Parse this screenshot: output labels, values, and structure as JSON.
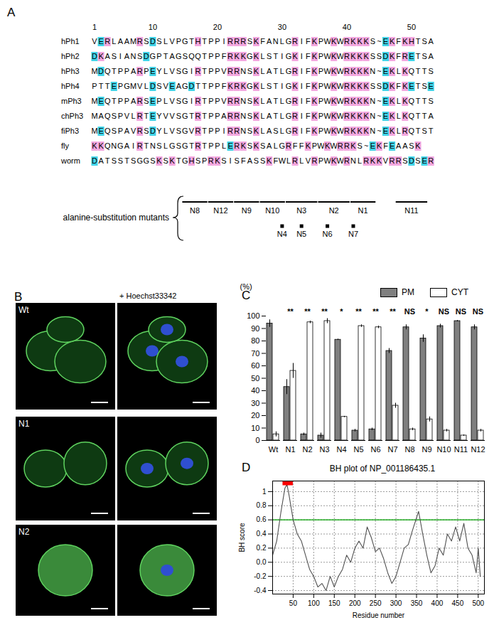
{
  "panel_a": {
    "letter": "A",
    "residue_numbers": [
      1,
      10,
      20,
      30,
      40,
      50
    ],
    "sequences": [
      {
        "name": "hPh1",
        "sequence": "VERLAAMRSDSLVPGTHTPPIRRRSKFANLGRIFKPWKWRKKKS~EKFKHTSA"
      },
      {
        "name": "hPh2",
        "sequence": "DKASIANSDGPTAGSQQTPPFRKKGKLSTIGKIFKPWKWRKKKSSDKFRETSA"
      },
      {
        "name": "hPh3",
        "sequence": "MDQTPPARPEYLVSGIRTPPVRRNSKLATLGRIFKPWKWRKKKN~EKLKQTTS"
      },
      {
        "name": "hPh4",
        "sequence": "PTTEPGMVLDSVEAGDTTPPFKRKGKLSTIGKIFKPWKWRKKKSSDKFKETSE"
      },
      {
        "name": "mPh3",
        "sequence": "MEQTPPARSEPLVSGIRTPPVRRNSKLATLGRIFKPWKWRKKKN~EKLKQTTS"
      },
      {
        "name": "chPh3",
        "sequence": "MAQSPVLRTEYVVSGTRTPPARRNSKLATLGRIFKPWKWRKKKN~EKLKQTTA"
      },
      {
        "name": "fiPh3",
        "sequence": "MEQSPAVRSDYLVSGVRTPPIRRNSKLASLGRIFKPWKWRKKKN~EKLRQTST"
      },
      {
        "name": "fly",
        "sequence": "KKQNGAIRTNSLGSGTRTPPLERKSKSALGRFFKPWKWRRKS~EKFEAASK"
      },
      {
        "name": "worm",
        "sequence": "DATSSTSGGSKSKTGHSPRKSISFASSKFWLRLVRPWKWRNLRKKVRRSDSER"
      }
    ],
    "mutant_group_label": "alanine-substitution mutants",
    "mutant_segments": [
      {
        "label": "N8",
        "start": 15,
        "end": 18
      },
      {
        "label": "N12",
        "start": 19,
        "end": 22
      },
      {
        "label": "N9",
        "start": 23,
        "end": 26
      },
      {
        "label": "N10",
        "start": 27,
        "end": 30
      },
      {
        "label": "N3",
        "start": 31,
        "end": 35
      },
      {
        "label": "N2",
        "start": 36,
        "end": 40
      },
      {
        "label": "N1",
        "start": 41,
        "end": 44
      },
      {
        "label": "N11",
        "start": 48,
        "end": 52
      }
    ],
    "mutant_points": [
      {
        "label": "N4",
        "position": 30
      },
      {
        "label": "N5",
        "position": 33
      },
      {
        "label": "N6",
        "position": 37
      },
      {
        "label": "N7",
        "position": 41
      }
    ]
  },
  "panel_b": {
    "letter": "B",
    "stain_label": "+ Hoechst33342",
    "images": [
      "Wt",
      "N1",
      "N2"
    ]
  },
  "chart_data": [
    {
      "letter": "C",
      "type": "bar",
      "categories": [
        "Wt",
        "N1",
        "N2",
        "N3",
        "N4",
        "N5",
        "N6",
        "N7",
        "N8",
        "N9",
        "N10",
        "N11",
        "N12"
      ],
      "series": [
        {
          "name": "PM",
          "color": "#7f7f7f",
          "values": [
            94,
            43,
            5,
            4,
            81,
            8,
            9,
            72,
            91,
            82,
            92,
            96,
            91
          ],
          "errors": [
            3,
            6,
            1,
            2,
            0.5,
            1,
            1,
            2,
            2,
            3,
            1.5,
            0.5,
            2
          ]
        },
        {
          "name": "CYT",
          "color": "#ffffff",
          "values": [
            5,
            56,
            95,
            96,
            19,
            92,
            91,
            28,
            9,
            17,
            8,
            4,
            8
          ],
          "errors": [
            2,
            6,
            1,
            2,
            0.5,
            1,
            1,
            2,
            1,
            2,
            1,
            0.5,
            1
          ]
        }
      ],
      "significance": [
        null,
        "**",
        "**",
        "**",
        "*",
        "**",
        "**",
        "**",
        "NS",
        "*",
        "NS",
        "NS",
        "NS"
      ],
      "y_label": "(%)",
      "ylim": [
        0,
        100
      ],
      "yticks": [
        0,
        10,
        20,
        30,
        40,
        50,
        60,
        70,
        80,
        90,
        100
      ],
      "legend": "top"
    },
    {
      "letter": "D",
      "type": "line",
      "title": "BH plot of NP_001186435.1",
      "x_label": "Residue number",
      "y_label": "BH score",
      "x": [
        0,
        10,
        20,
        30,
        35,
        40,
        50,
        60,
        70,
        80,
        90,
        100,
        110,
        120,
        130,
        140,
        150,
        160,
        170,
        180,
        190,
        200,
        210,
        220,
        230,
        240,
        250,
        260,
        270,
        280,
        290,
        300,
        310,
        320,
        330,
        340,
        355,
        365,
        375,
        385,
        395,
        405,
        415,
        425,
        435,
        445,
        455,
        465,
        475,
        485,
        495,
        500,
        505
      ],
      "values": [
        0.1,
        0.3,
        0.7,
        1.05,
        1.1,
        0.95,
        0.6,
        0.4,
        0.3,
        0.1,
        -0.1,
        -0.2,
        -0.35,
        -0.3,
        -0.4,
        -0.2,
        -0.35,
        -0.2,
        -0.1,
        0.1,
        0.0,
        0.2,
        0.3,
        0.2,
        0.5,
        0.35,
        0.15,
        0.2,
        0.05,
        -0.15,
        -0.3,
        -0.2,
        0.0,
        0.2,
        0.25,
        0.45,
        0.72,
        0.4,
        0.1,
        -0.15,
        -0.05,
        0.2,
        0.1,
        0.4,
        0.3,
        0.5,
        0.3,
        0.55,
        0.2,
        0.1,
        -0.15,
        0.2,
        -0.2
      ],
      "color": "#505050",
      "xlim": [
        0,
        515
      ],
      "xticks": [
        50,
        100,
        150,
        200,
        250,
        300,
        350,
        400,
        450,
        500
      ],
      "ylim": [
        -0.45,
        1.15
      ],
      "yticks": [
        -0.4,
        -0.2,
        {
          "value": 0,
          "label": "0.0"
        },
        0.2,
        0.4,
        0.6,
        0.8,
        1
      ],
      "grid": true,
      "threshold": {
        "value": 0.6,
        "color": "#00a000"
      },
      "highlight": {
        "x1": 25,
        "x2": 50,
        "y": 1.12,
        "color": "#ff0000"
      }
    }
  ]
}
